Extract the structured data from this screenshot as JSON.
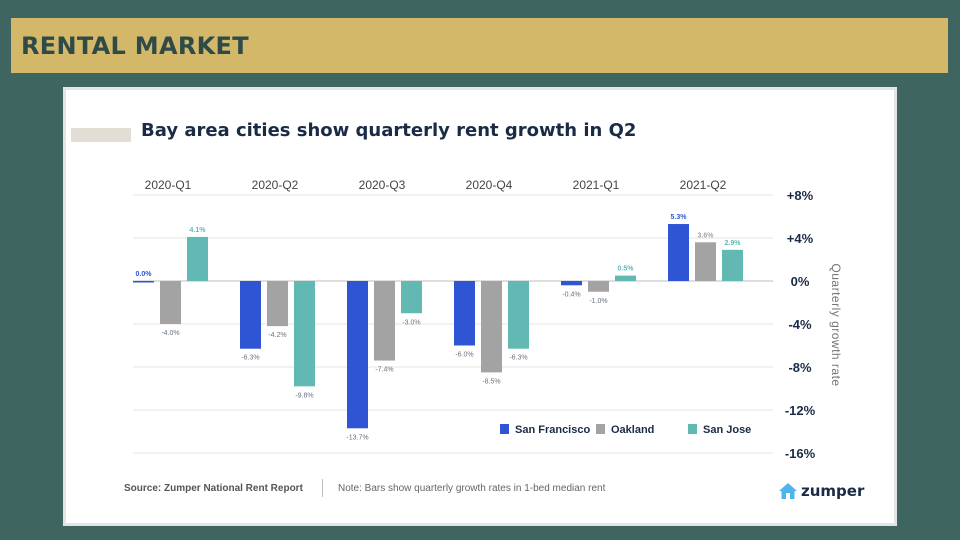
{
  "slide": {
    "title": "RENTAL MARKET"
  },
  "card": {
    "source": "Source: Zumper National Rent Report",
    "note": "Note: Bars show quarterly growth rates in 1-bed median rent",
    "brand": {
      "name": "zumper",
      "icon": "house-logo-icon"
    }
  },
  "chart_data": {
    "type": "bar",
    "title": "Bay area cities show quarterly rent growth in Q2",
    "ylabel": "Quarterly growth rate",
    "categories": [
      "2020-Q1",
      "2020-Q2",
      "2020-Q3",
      "2020-Q4",
      "2021-Q1",
      "2021-Q2"
    ],
    "series": [
      {
        "name": "San Francisco",
        "color": "#2f55d4",
        "values": [
          0.0,
          -6.3,
          -13.7,
          -6.0,
          -0.4,
          5.3
        ],
        "labels": [
          "0.0%",
          "-6.3%",
          "-13.7%",
          "-6.0%",
          "-0.4%",
          "5.3%"
        ]
      },
      {
        "name": "Oakland",
        "color": "#a3a3a3",
        "values": [
          -4.0,
          -4.2,
          -7.4,
          -8.5,
          -1.0,
          3.6
        ],
        "labels": [
          "-4.0%",
          "-4.2%",
          "-7.4%",
          "-8.5%",
          "-1.0%",
          "3.6%"
        ]
      },
      {
        "name": "San Jose",
        "color": "#62b8b2",
        "values": [
          4.1,
          -9.8,
          -3.0,
          -6.3,
          0.5,
          2.9
        ],
        "labels": [
          "4.1%",
          "-9.8%",
          "-3.0%",
          "-6.3%",
          "0.5%",
          "2.9%"
        ]
      }
    ],
    "yticks": [
      8,
      4,
      0,
      -4,
      -8,
      -12,
      -16
    ],
    "ytick_labels": [
      "+8%",
      "+4%",
      "0%",
      "-4%",
      "-8%",
      "-12%",
      "-16%"
    ],
    "ylim": [
      -16,
      8
    ],
    "grid": true,
    "legend_position": "bottom-right"
  }
}
